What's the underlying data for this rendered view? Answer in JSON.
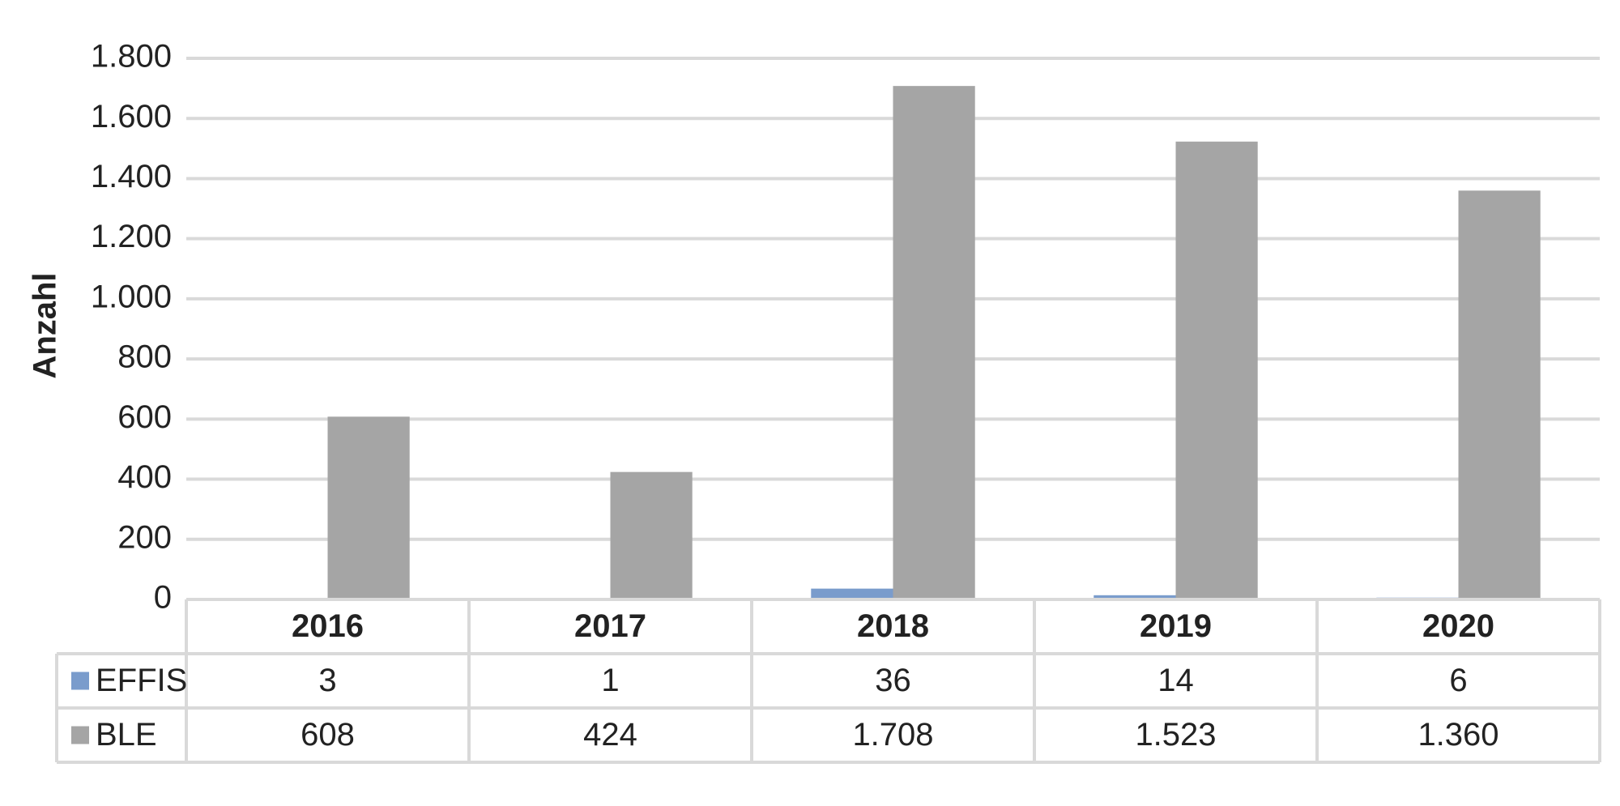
{
  "chart_data": {
    "type": "bar",
    "y_label": "Anzahl",
    "categories": [
      "2016",
      "2017",
      "2018",
      "2019",
      "2020"
    ],
    "series": [
      {
        "name": "EFFIS",
        "color": "#7a9ccc",
        "values": [
          3,
          1,
          36,
          14,
          6
        ]
      },
      {
        "name": "BLE",
        "color": "#a5a5a5",
        "values": [
          608,
          424,
          1708,
          1523,
          1360
        ],
        "value_labels": [
          "608",
          "424",
          "1.708",
          "1.523",
          "1.360"
        ]
      }
    ],
    "ylim": [
      0,
      1800
    ],
    "yticks": [
      0,
      {
        "value": 200,
        "label": "200"
      },
      {
        "value": 400,
        "label": "400"
      },
      {
        "value": 600,
        "label": "600"
      },
      {
        "value": 800,
        "label": "800"
      },
      {
        "value": 1000,
        "label": "1.000"
      },
      {
        "value": 1200,
        "label": "1.200"
      },
      {
        "value": 1400,
        "label": "1.400"
      },
      {
        "value": 1600,
        "label": "1.600"
      },
      {
        "value": 1800,
        "label": "1.800"
      }
    ],
    "grid": true,
    "data_table": true
  }
}
